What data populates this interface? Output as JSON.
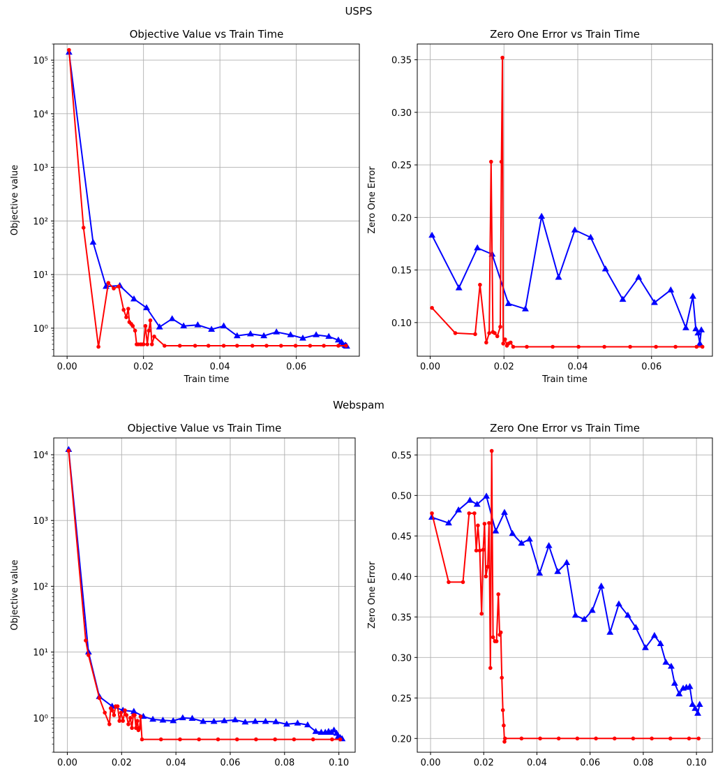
{
  "figure": {
    "suptitles": [
      "USPS",
      "Webspam"
    ]
  },
  "colors": {
    "series_a": "#0000ff",
    "series_b": "#ff0000",
    "grid": "#b0b0b0",
    "axis": "#000000"
  },
  "chart_data": [
    {
      "type": "line",
      "title": "Objective Value vs Train Time",
      "xlabel": "Train time",
      "ylabel": "Objective value",
      "yscale": "log",
      "xlim": [
        -0.0035,
        0.0765
      ],
      "ylim": [
        0.3,
        200000
      ],
      "xticks": [
        0.0,
        0.02,
        0.04,
        0.06
      ],
      "xtick_labels": [
        "0.00",
        "0.02",
        "0.04",
        "0.06"
      ],
      "yticks": [
        1,
        10,
        100,
        1000,
        10000,
        100000
      ],
      "ytick_labels": [
        "10⁰",
        "10¹",
        "10²",
        "10³",
        "10⁴",
        "10⁵"
      ],
      "grid": true,
      "series": [
        {
          "color": "#0000ff",
          "marker": "triangle",
          "x": [
            0.0005,
            0.0068,
            0.0102,
            0.0138,
            0.0175,
            0.0208,
            0.0242,
            0.0275,
            0.0305,
            0.0342,
            0.0378,
            0.041,
            0.0445,
            0.048,
            0.0515,
            0.0548,
            0.0585,
            0.0617,
            0.0652,
            0.0685,
            0.071,
            0.0718,
            0.0722,
            0.0728,
            0.073,
            0.0732
          ],
          "y": [
            140000,
            40,
            6,
            6.2,
            3.5,
            2.4,
            1.05,
            1.5,
            1.1,
            1.15,
            0.95,
            1.1,
            0.72,
            0.78,
            0.72,
            0.85,
            0.75,
            0.65,
            0.75,
            0.7,
            0.6,
            0.55,
            0.5,
            0.48,
            0.47,
            0.46
          ]
        },
        {
          "color": "#ff0000",
          "marker": "circle",
          "x": [
            0.0005,
            0.0043,
            0.0082,
            0.0108,
            0.0122,
            0.0135,
            0.0148,
            0.0155,
            0.016,
            0.0163,
            0.0168,
            0.0172,
            0.0178,
            0.0182,
            0.0186,
            0.0192,
            0.0196,
            0.02,
            0.0205,
            0.021,
            0.0214,
            0.0218,
            0.0222,
            0.0228,
            0.0255,
            0.0295,
            0.0335,
            0.037,
            0.041,
            0.0445,
            0.0485,
            0.0522,
            0.056,
            0.0598,
            0.0636,
            0.0672,
            0.071,
            0.073
          ],
          "y": [
            155000,
            75,
            0.45,
            7,
            5.5,
            6,
            2.2,
            1.6,
            2.3,
            1.3,
            1.2,
            1.1,
            0.9,
            0.5,
            0.5,
            0.5,
            0.5,
            0.5,
            1.1,
            0.5,
            0.9,
            1.4,
            0.5,
            0.7,
            0.47,
            0.47,
            0.47,
            0.47,
            0.47,
            0.47,
            0.47,
            0.47,
            0.47,
            0.47,
            0.47,
            0.47,
            0.47,
            0.47
          ]
        }
      ]
    },
    {
      "type": "line",
      "title": "Zero One Error vs Train Time",
      "xlabel": "Train time",
      "ylabel": "Zero One Error",
      "yscale": "linear",
      "xlim": [
        -0.0035,
        0.0765
      ],
      "ylim": [
        0.068,
        0.365
      ],
      "xticks": [
        0.0,
        0.02,
        0.04,
        0.06
      ],
      "xtick_labels": [
        "0.00",
        "0.02",
        "0.04",
        "0.06"
      ],
      "yticks": [
        0.1,
        0.15,
        0.2,
        0.25,
        0.3,
        0.35
      ],
      "ytick_labels": [
        "0.10",
        "0.15",
        "0.20",
        "0.25",
        "0.30",
        "0.35"
      ],
      "grid": true,
      "series": [
        {
          "color": "#0000ff",
          "marker": "triangle",
          "x": [
            0.0005,
            0.0078,
            0.0128,
            0.0168,
            0.0212,
            0.0258,
            0.0302,
            0.0348,
            0.0392,
            0.0435,
            0.0475,
            0.0522,
            0.0565,
            0.0608,
            0.0652,
            0.0693,
            0.0712,
            0.072,
            0.0726,
            0.0731,
            0.0735
          ],
          "y": [
            0.183,
            0.133,
            0.171,
            0.165,
            0.118,
            0.113,
            0.201,
            0.143,
            0.188,
            0.181,
            0.151,
            0.122,
            0.143,
            0.119,
            0.131,
            0.095,
            0.125,
            0.094,
            0.09,
            0.08,
            0.093
          ]
        },
        {
          "color": "#ff0000",
          "marker": "circle",
          "x": [
            0.0005,
            0.0068,
            0.0122,
            0.0135,
            0.0152,
            0.016,
            0.0165,
            0.017,
            0.0175,
            0.0182,
            0.019,
            0.0193,
            0.0196,
            0.0198,
            0.0203,
            0.0208,
            0.0212,
            0.0218,
            0.0225,
            0.0262,
            0.0332,
            0.0402,
            0.0472,
            0.0542,
            0.0612,
            0.0665,
            0.0722,
            0.0738
          ],
          "y": [
            0.114,
            0.09,
            0.089,
            0.136,
            0.081,
            0.09,
            0.253,
            0.091,
            0.09,
            0.087,
            0.096,
            0.253,
            0.352,
            0.08,
            0.084,
            0.078,
            0.08,
            0.081,
            0.077,
            0.077,
            0.077,
            0.077,
            0.077,
            0.077,
            0.077,
            0.077,
            0.077,
            0.077
          ]
        }
      ]
    },
    {
      "type": "line",
      "title": "Objective Value vs Train Time",
      "xlabel": "Train time",
      "ylabel": "Objective value",
      "yscale": "log",
      "xlim": [
        -0.005,
        0.106
      ],
      "ylim": [
        0.3,
        18000
      ],
      "xticks": [
        0.0,
        0.02,
        0.04,
        0.06,
        0.08,
        0.1
      ],
      "xtick_labels": [
        "0.00",
        "0.02",
        "0.04",
        "0.06",
        "0.08",
        "0.10"
      ],
      "yticks": [
        1,
        10,
        100,
        1000,
        10000
      ],
      "ytick_labels": [
        "10⁰",
        "10¹",
        "10²",
        "10³",
        "10⁴"
      ],
      "grid": true,
      "series": [
        {
          "color": "#0000ff",
          "marker": "triangle",
          "x": [
            0.0005,
            0.0078,
            0.0118,
            0.0165,
            0.0205,
            0.0245,
            0.028,
            0.0315,
            0.0352,
            0.039,
            0.0425,
            0.046,
            0.05,
            0.054,
            0.0578,
            0.0618,
            0.0655,
            0.0692,
            0.073,
            0.0768,
            0.0808,
            0.0848,
            0.0885,
            0.0915,
            0.0935,
            0.095,
            0.0962,
            0.0972,
            0.0982,
            0.0992,
            0.0998,
            0.1005,
            0.1012
          ],
          "y": [
            12000,
            10,
            2.1,
            1.5,
            1.3,
            1.25,
            1.05,
            0.95,
            0.92,
            0.9,
            1,
            0.98,
            0.88,
            0.88,
            0.9,
            0.93,
            0.86,
            0.88,
            0.88,
            0.87,
            0.8,
            0.83,
            0.78,
            0.62,
            0.6,
            0.6,
            0.62,
            0.6,
            0.65,
            0.58,
            0.52,
            0.5,
            0.48
          ]
        },
        {
          "color": "#ff0000",
          "marker": "circle",
          "x": [
            0.0005,
            0.0068,
            0.0078,
            0.0118,
            0.0138,
            0.0155,
            0.016,
            0.0165,
            0.0172,
            0.0178,
            0.0185,
            0.0192,
            0.0198,
            0.0205,
            0.0212,
            0.0218,
            0.0225,
            0.0232,
            0.0238,
            0.0243,
            0.0248,
            0.0253,
            0.0258,
            0.0262,
            0.0266,
            0.027,
            0.0275,
            0.0345,
            0.0415,
            0.0485,
            0.0555,
            0.0625,
            0.0695,
            0.0765,
            0.0835,
            0.0905,
            0.0975,
            0.1005
          ],
          "y": [
            11500,
            15,
            9,
            2,
            1.2,
            0.8,
            1.4,
            1.3,
            1.1,
            1.5,
            1.5,
            0.9,
            1.2,
            0.9,
            1.3,
            1.1,
            0.8,
            1,
            0.7,
            1.1,
            1.1,
            0.7,
            0.9,
            0.65,
            0.7,
            1.05,
            0.47,
            0.47,
            0.47,
            0.47,
            0.47,
            0.47,
            0.47,
            0.47,
            0.47,
            0.47,
            0.47,
            0.47
          ]
        }
      ]
    },
    {
      "type": "line",
      "title": "Zero One Error vs Train Time",
      "xlabel": "Train time",
      "ylabel": "Zero One Error",
      "yscale": "linear",
      "xlim": [
        -0.005,
        0.106
      ],
      "ylim": [
        0.183,
        0.571
      ],
      "xticks": [
        0.0,
        0.02,
        0.04,
        0.06,
        0.08,
        0.1
      ],
      "xtick_labels": [
        "0.00",
        "0.02",
        "0.04",
        "0.06",
        "0.08",
        "0.10"
      ],
      "yticks": [
        0.2,
        0.25,
        0.3,
        0.35,
        0.4,
        0.45,
        0.5,
        0.55
      ],
      "ytick_labels": [
        "0.20",
        "0.25",
        "0.30",
        "0.35",
        "0.40",
        "0.45",
        "0.50",
        "0.55"
      ],
      "grid": true,
      "series": [
        {
          "color": "#0000ff",
          "marker": "triangle",
          "x": [
            0.0005,
            0.0068,
            0.0105,
            0.0148,
            0.0175,
            0.021,
            0.0245,
            0.0278,
            0.0308,
            0.0342,
            0.0372,
            0.041,
            0.0445,
            0.0478,
            0.0512,
            0.0545,
            0.0578,
            0.0608,
            0.0642,
            0.0675,
            0.0708,
            0.0742,
            0.0772,
            0.0808,
            0.0842,
            0.0865,
            0.0885,
            0.0905,
            0.0918,
            0.0935,
            0.095,
            0.0962,
            0.0975,
            0.0985,
            0.0995,
            0.1005,
            0.1012
          ],
          "y": [
            0.473,
            0.466,
            0.482,
            0.494,
            0.489,
            0.499,
            0.456,
            0.479,
            0.453,
            0.441,
            0.446,
            0.404,
            0.438,
            0.406,
            0.417,
            0.352,
            0.347,
            0.358,
            0.388,
            0.331,
            0.366,
            0.352,
            0.337,
            0.312,
            0.327,
            0.317,
            0.294,
            0.289,
            0.268,
            0.255,
            0.262,
            0.263,
            0.264,
            0.242,
            0.237,
            0.231,
            0.242
          ]
        },
        {
          "color": "#ff0000",
          "marker": "circle",
          "x": [
            0.0005,
            0.0068,
            0.0122,
            0.0145,
            0.0165,
            0.0172,
            0.0178,
            0.0185,
            0.0192,
            0.0198,
            0.0203,
            0.0208,
            0.0215,
            0.022,
            0.0225,
            0.023,
            0.0235,
            0.0242,
            0.0248,
            0.0255,
            0.026,
            0.0264,
            0.0268,
            0.0272,
            0.0275,
            0.0278,
            0.028,
            0.0342,
            0.0412,
            0.0482,
            0.0552,
            0.0622,
            0.0692,
            0.0762,
            0.0832,
            0.0902,
            0.0972,
            0.1008
          ],
          "y": [
            0.478,
            0.393,
            0.393,
            0.478,
            0.478,
            0.432,
            0.463,
            0.432,
            0.354,
            0.433,
            0.465,
            0.4,
            0.412,
            0.466,
            0.287,
            0.555,
            0.325,
            0.32,
            0.32,
            0.378,
            0.328,
            0.331,
            0.275,
            0.235,
            0.216,
            0.196,
            0.2,
            0.2,
            0.2,
            0.2,
            0.2,
            0.2,
            0.2,
            0.2,
            0.2,
            0.2,
            0.2,
            0.2
          ]
        }
      ]
    }
  ]
}
